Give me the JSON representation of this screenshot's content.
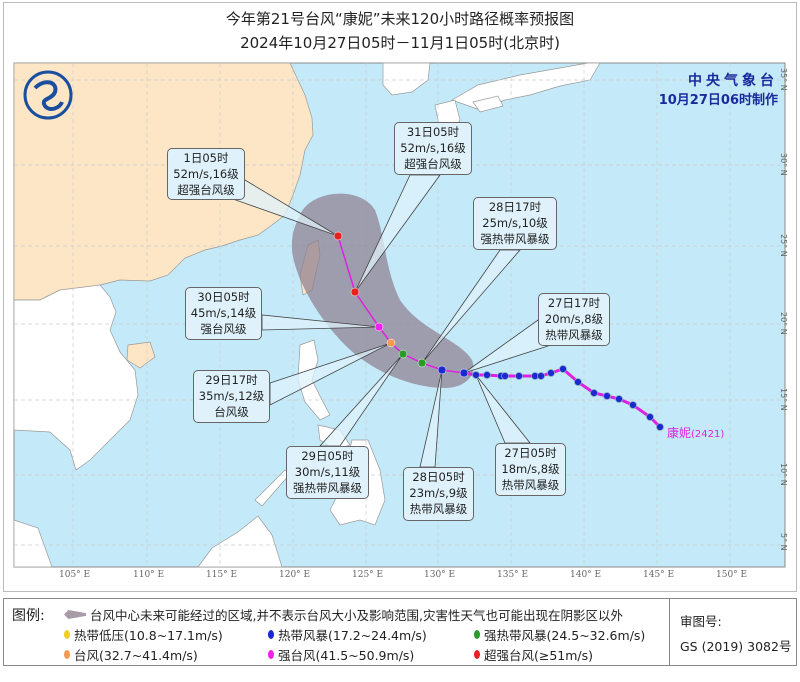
{
  "title": {
    "line1": "今年第21号台风“康妮”未来120小时路径概率预报图",
    "line2": "2024年10月27日05时－11月1日05时(北京时)"
  },
  "agency": {
    "name": "中央气象台",
    "issued": "10月27日06时制作"
  },
  "storm": {
    "name": "康妮",
    "code": "(2421)",
    "label_color": "#e020e0"
  },
  "lon_ticks": [
    "105° E",
    "110° E",
    "115° E",
    "120° E",
    "125° E",
    "130° E",
    "135° E",
    "140° E",
    "145° E",
    "150° E"
  ],
  "lat_ticks": [
    "35° N",
    "30° N",
    "25° N",
    "20° N",
    "15° N",
    "10° N",
    "5° N"
  ],
  "forecast_points": [
    {
      "time": "1日05时",
      "wind": "52m/s,16级",
      "category": "超强台风级",
      "level": "super_typhoon"
    },
    {
      "time": "31日05时",
      "wind": "52m/s,16级",
      "category": "超强台风级",
      "level": "super_typhoon"
    },
    {
      "time": "30日05时",
      "wind": "45m/s,14级",
      "category": "强台风级",
      "level": "severe_typhoon"
    },
    {
      "time": "29日17时",
      "wind": "35m/s,12级",
      "category": "台风级",
      "level": "typhoon"
    },
    {
      "time": "29日05时",
      "wind": "30m/s,11级",
      "category": "强热带风暴级",
      "level": "severe_tropical_storm"
    },
    {
      "time": "28日17时",
      "wind": "25m/s,10级",
      "category": "强热带风暴级",
      "level": "severe_tropical_storm"
    },
    {
      "time": "28日05时",
      "wind": "23m/s,9级",
      "category": "热带风暴级",
      "level": "tropical_storm"
    },
    {
      "time": "27日17时",
      "wind": "20m/s,8级",
      "category": "热带风暴级",
      "level": "tropical_storm"
    },
    {
      "time": "27日05时",
      "wind": "18m/s,8级",
      "category": "热带风暴级",
      "level": "tropical_storm"
    }
  ],
  "legend": {
    "title": "图例:",
    "cone_text": "台风中心未来可能经过的区域,并不表示台风大小及影响范围,灾害性天气也可能出现在阴影区以外",
    "categories": [
      {
        "label": "热带低压(10.8~17.1m/s)",
        "color": "#f0d020"
      },
      {
        "label": "热带风暴(17.2~24.4m/s)",
        "color": "#1a2ad0"
      },
      {
        "label": "强热带风暴(24.5~32.6m/s)",
        "color": "#2a9a2a"
      },
      {
        "label": "台风(32.7~41.4m/s)",
        "color": "#f59a50"
      },
      {
        "label": "强台风(41.5~50.9m/s)",
        "color": "#f020f0"
      },
      {
        "label": "超强台风(≥51m/s)",
        "color": "#e82020"
      }
    ],
    "review_label": "审图号:",
    "review_number": "GS (2019) 3082号"
  },
  "colors": {
    "sea": "#c4eaf9",
    "china_land": "#fde6c6",
    "other_land": "#ffffff",
    "cone": "#9a8e9c",
    "track": "#e020e0"
  }
}
